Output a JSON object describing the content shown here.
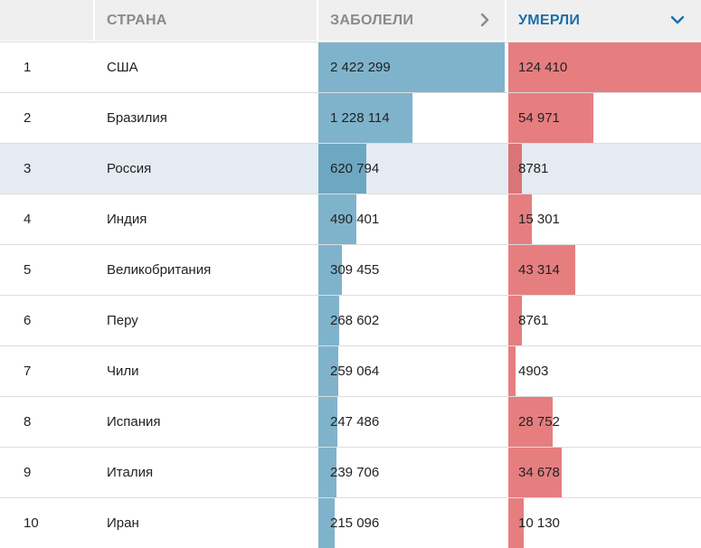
{
  "header": {
    "rank_label": "",
    "country_label": "СТРАНА",
    "cases_label": "ЗАБОЛЕЛИ",
    "deaths_label": "УМЕРЛИ",
    "cases_icon": "chevron-right-icon",
    "deaths_icon": "chevron-down-icon",
    "active_color": "#1b6fa8"
  },
  "max_cases": 2422299,
  "max_deaths": 124410,
  "colors": {
    "cases_bar": "#7fb3cc",
    "deaths_bar": "#e67e80",
    "highlight_row": "#e5ebf2"
  },
  "rows": [
    {
      "rank": "1",
      "country": "США",
      "cases": "2 422 299",
      "deaths": "124 410",
      "cases_value": 2422299,
      "deaths_value": 124410
    },
    {
      "rank": "2",
      "country": "Бразилия",
      "cases": "1 228 114",
      "deaths": "54 971",
      "cases_value": 1228114,
      "deaths_value": 54971
    },
    {
      "rank": "3",
      "country": "Россия",
      "cases": "620 794",
      "deaths": "8781",
      "cases_value": 620794,
      "deaths_value": 8781,
      "highlighted": true
    },
    {
      "rank": "4",
      "country": "Индия",
      "cases": "490 401",
      "deaths": "15 301",
      "cases_value": 490401,
      "deaths_value": 15301
    },
    {
      "rank": "5",
      "country": "Великобритания",
      "cases": "309 455",
      "deaths": "43 314",
      "cases_value": 309455,
      "deaths_value": 43314
    },
    {
      "rank": "6",
      "country": "Перу",
      "cases": "268 602",
      "deaths": "8761",
      "cases_value": 268602,
      "deaths_value": 8761
    },
    {
      "rank": "7",
      "country": "Чили",
      "cases": "259 064",
      "deaths": "4903",
      "cases_value": 259064,
      "deaths_value": 4903
    },
    {
      "rank": "8",
      "country": "Испания",
      "cases": "247 486",
      "deaths": "28 752",
      "cases_value": 247486,
      "deaths_value": 28752
    },
    {
      "rank": "9",
      "country": "Италия",
      "cases": "239 706",
      "deaths": "34 678",
      "cases_value": 239706,
      "deaths_value": 34678
    },
    {
      "rank": "10",
      "country": "Иран",
      "cases": "215 096",
      "deaths": "10 130",
      "cases_value": 215096,
      "deaths_value": 10130
    }
  ]
}
